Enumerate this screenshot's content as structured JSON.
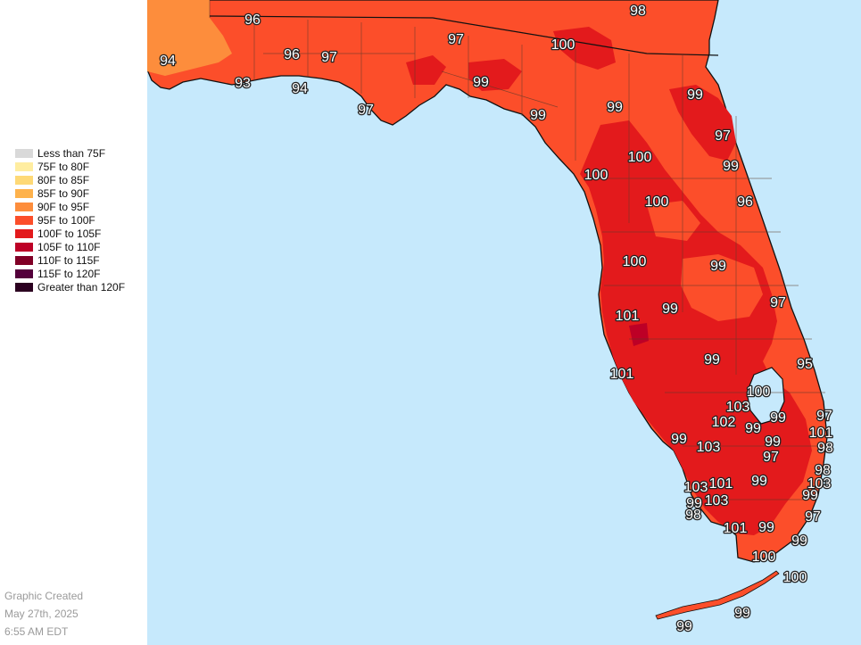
{
  "legend": {
    "items": [
      {
        "label": "Less than 75F",
        "color": "#d9d9d9"
      },
      {
        "label": "75F to 80F",
        "color": "#ffeda0"
      },
      {
        "label": "80F to 85F",
        "color": "#fed976"
      },
      {
        "label": "85F to 90F",
        "color": "#feb24c"
      },
      {
        "label": "90F to 95F",
        "color": "#fd8d3c"
      },
      {
        "label": "95F to 100F",
        "color": "#fc4e2a"
      },
      {
        "label": "100F to 105F",
        "color": "#e31a1c"
      },
      {
        "label": "105F to 110F",
        "color": "#bd0026"
      },
      {
        "label": "110F to 115F",
        "color": "#800026"
      },
      {
        "label": "115F to 120F",
        "color": "#54003b"
      },
      {
        "label": "Greater than 120F",
        "color": "#2b0020"
      }
    ]
  },
  "caption": {
    "line1": "Graphic Created",
    "line2": "May 27th, 2025",
    "line3": "6:55 AM EDT"
  },
  "map": {
    "water_color": "#c6e9fc",
    "temperature_labels": [
      "96",
      "98",
      "97",
      "100",
      "94",
      "96",
      "97",
      "93",
      "94",
      "99",
      "97",
      "99",
      "99",
      "99",
      "97",
      "100",
      "99",
      "100",
      "100",
      "96",
      "100",
      "99",
      "97",
      "101",
      "99",
      "99",
      "101",
      "95",
      "100",
      "103",
      "99",
      "102",
      "99",
      "97",
      "103",
      "101",
      "99",
      "99",
      "98",
      "97",
      "98",
      "103",
      "103",
      "101",
      "99",
      "103",
      "99",
      "99",
      "98",
      "97",
      "101",
      "99",
      "99",
      "100",
      "100",
      "99",
      "99"
    ]
  }
}
